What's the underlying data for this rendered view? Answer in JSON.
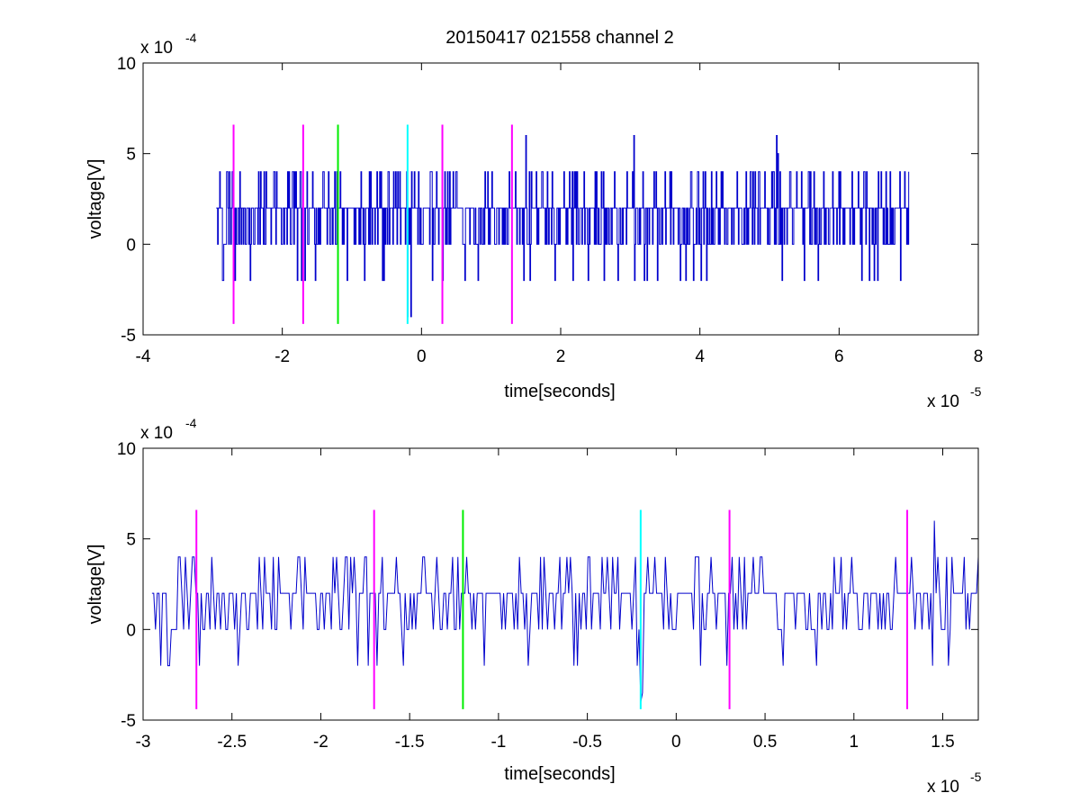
{
  "chart_data": [
    {
      "type": "line",
      "title": "20150417 021558 channel 2",
      "xlabel": "time[seconds]",
      "ylabel": "voltage[V]",
      "x_scale_label": {
        "base": "x 10",
        "exponent": "-5"
      },
      "y_scale_label": {
        "base": "x 10",
        "exponent": "-4"
      },
      "xlim": [
        -4,
        8
      ],
      "ylim": [
        -5,
        10
      ],
      "x_ticks": [
        "-4",
        "-2",
        "0",
        "2",
        "4",
        "6",
        "8"
      ],
      "y_ticks": [
        "-5",
        "0",
        "5",
        "10"
      ],
      "x_tick_values": [
        -4,
        -2,
        0,
        2,
        4,
        6,
        8
      ],
      "y_tick_values": [
        -5,
        0,
        5,
        10
      ],
      "grid": false,
      "signal": {
        "color": "#0000cc",
        "x_start": -2.95,
        "x_end": 7.0,
        "levels": [
          -2,
          0,
          2,
          4
        ],
        "spikes": [
          [
            1.5,
            6
          ],
          [
            3.05,
            6
          ],
          [
            5.1,
            6
          ],
          [
            5.12,
            5
          ],
          [
            -0.2,
            -4
          ],
          [
            -0.15,
            -4
          ]
        ]
      },
      "markers": [
        {
          "x": -2.7,
          "color": "#ff00ff",
          "y_range": [
            -4.4,
            6.6
          ]
        },
        {
          "x": -1.7,
          "color": "#ff00ff",
          "y_range": [
            -4.4,
            6.6
          ]
        },
        {
          "x": -1.2,
          "color": "#00ee00",
          "y_range": [
            -4.4,
            6.6
          ]
        },
        {
          "x": -0.2,
          "color": "#00ffff",
          "y_range": [
            -4.4,
            6.6
          ]
        },
        {
          "x": 0.3,
          "color": "#ff00ff",
          "y_range": [
            -4.4,
            6.6
          ]
        },
        {
          "x": 1.3,
          "color": "#ff00ff",
          "y_range": [
            -4.4,
            6.6
          ]
        }
      ]
    },
    {
      "type": "line",
      "title": "",
      "xlabel": "time[seconds]",
      "ylabel": "voltage[V]",
      "x_scale_label": {
        "base": "x 10",
        "exponent": "-5"
      },
      "y_scale_label": {
        "base": "x 10",
        "exponent": "-4"
      },
      "xlim": [
        -3.0,
        1.7
      ],
      "ylim": [
        -5,
        10
      ],
      "x_ticks": [
        "-3",
        "-2.5",
        "-2",
        "-1.5",
        "-1",
        "-0.5",
        "0",
        "0.5",
        "1",
        "1.5"
      ],
      "y_ticks": [
        "-5",
        "0",
        "5",
        "10"
      ],
      "x_tick_values": [
        -3,
        -2.5,
        -2,
        -1.5,
        -1,
        -0.5,
        0,
        0.5,
        1,
        1.5
      ],
      "y_tick_values": [
        -5,
        0,
        5,
        10
      ],
      "grid": false,
      "signal": {
        "color": "#0000cc",
        "x_start": -2.95,
        "x_end": 1.7,
        "levels": [
          -2,
          0,
          2,
          4
        ],
        "spikes": [
          [
            1.45,
            6
          ],
          [
            -0.2,
            -4
          ],
          [
            -0.19,
            -3.5
          ],
          [
            -2.9,
            -2
          ]
        ]
      },
      "markers": [
        {
          "x": -2.7,
          "color": "#ff00ff",
          "y_range": [
            -4.4,
            6.6
          ]
        },
        {
          "x": -1.7,
          "color": "#ff00ff",
          "y_range": [
            -4.4,
            6.6
          ]
        },
        {
          "x": -1.2,
          "color": "#00ee00",
          "y_range": [
            -4.4,
            6.6
          ]
        },
        {
          "x": -0.2,
          "color": "#00ffff",
          "y_range": [
            -4.4,
            6.6
          ]
        },
        {
          "x": 0.3,
          "color": "#ff00ff",
          "y_range": [
            -4.4,
            6.6
          ]
        },
        {
          "x": 1.3,
          "color": "#ff00ff",
          "y_range": [
            -4.4,
            6.6
          ]
        }
      ]
    }
  ]
}
